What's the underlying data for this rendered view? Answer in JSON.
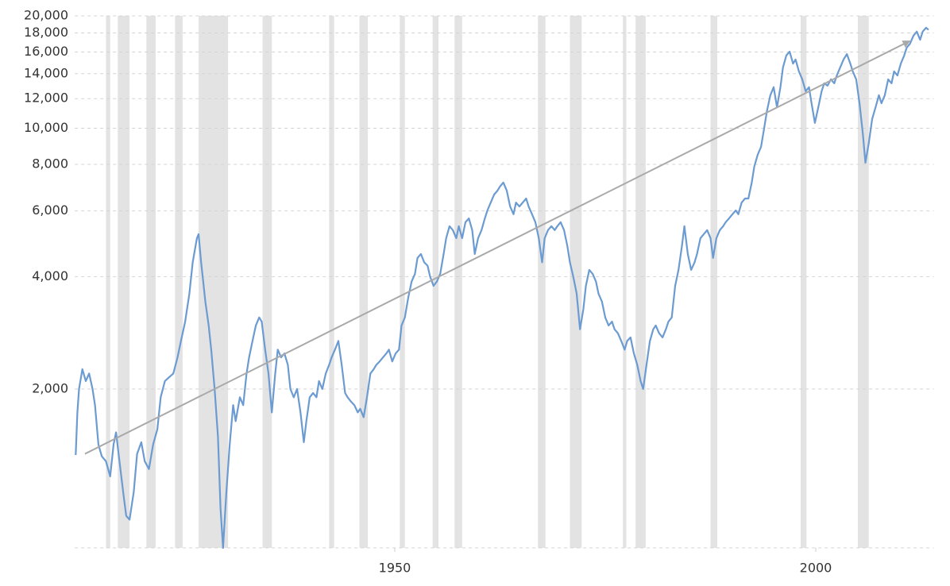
{
  "chart_data": {
    "type": "line",
    "log_y": true,
    "grid": true,
    "xlim": [
      1912,
      2014
    ],
    "xticks": [
      1950,
      2000
    ],
    "ylim": [
      750,
      20000
    ],
    "yticks": [
      {
        "value": 2000,
        "label": "2,000"
      },
      {
        "value": 4000,
        "label": "4,000"
      },
      {
        "value": 6000,
        "label": "6,000"
      },
      {
        "value": 8000,
        "label": "8,000"
      },
      {
        "value": 10000,
        "label": "10,000"
      },
      {
        "value": 12000,
        "label": "12,000"
      },
      {
        "value": 14000,
        "label": "14,000"
      },
      {
        "value": 16000,
        "label": "16,000"
      },
      {
        "value": 18000,
        "label": "18,000"
      },
      {
        "value": 20000,
        "label": "20,000"
      }
    ],
    "recession_color": "#e3e3e3",
    "recessions": [
      [
        1915.7,
        1916.2
      ],
      [
        1917.1,
        1918.5
      ],
      [
        1920.5,
        1921.6
      ],
      [
        1923.9,
        1924.8
      ],
      [
        1926.7,
        1930.2
      ],
      [
        1934.3,
        1935.4
      ],
      [
        1942.2,
        1942.8
      ],
      [
        1945.8,
        1946.8
      ],
      [
        1950.6,
        1951.2
      ],
      [
        1954.5,
        1955.2
      ],
      [
        1957.1,
        1958.0
      ],
      [
        1967.0,
        1967.9
      ],
      [
        1970.8,
        1972.2
      ],
      [
        1977.1,
        1977.5
      ],
      [
        1978.6,
        1979.8
      ],
      [
        1987.5,
        1988.3
      ],
      [
        1998.2,
        1998.9
      ],
      [
        2005.0,
        2006.3
      ]
    ],
    "trend": {
      "color": "#a9a9a9",
      "x": [
        1913.2,
        2011.1
      ],
      "values": [
        1340,
        17100
      ]
    },
    "x": [
      1912.1,
      1912.3,
      1912.5,
      1912.9,
      1913.3,
      1913.7,
      1914.1,
      1914.4,
      1914.8,
      1915.2,
      1915.7,
      1916.2,
      1916.6,
      1916.9,
      1917.3,
      1917.8,
      1918.1,
      1918.5,
      1919.0,
      1919.4,
      1919.9,
      1920.3,
      1920.8,
      1921.3,
      1921.8,
      1922.2,
      1922.7,
      1923.2,
      1923.7,
      1924.2,
      1924.6,
      1925.1,
      1925.6,
      1926.0,
      1926.5,
      1926.7,
      1927.0,
      1927.3,
      1927.5,
      1927.9,
      1928.2,
      1928.6,
      1929.0,
      1929.3,
      1929.6,
      1930.0,
      1930.4,
      1930.8,
      1931.1,
      1931.6,
      1932.0,
      1932.4,
      1932.7,
      1933.1,
      1933.5,
      1933.9,
      1934.2,
      1934.6,
      1935.0,
      1935.4,
      1935.8,
      1936.1,
      1936.5,
      1936.9,
      1937.3,
      1937.6,
      1938.0,
      1938.4,
      1938.8,
      1939.2,
      1939.5,
      1939.9,
      1940.3,
      1940.7,
      1941.0,
      1941.4,
      1941.8,
      1942.2,
      1942.5,
      1942.9,
      1943.3,
      1943.7,
      1944.1,
      1944.4,
      1944.8,
      1945.2,
      1945.6,
      1945.9,
      1946.3,
      1946.7,
      1947.1,
      1947.5,
      1947.8,
      1948.2,
      1948.6,
      1949.0,
      1949.3,
      1949.7,
      1950.1,
      1950.5,
      1950.8,
      1951.2,
      1951.6,
      1952.0,
      1952.4,
      1952.7,
      1953.1,
      1953.5,
      1953.9,
      1954.2,
      1954.6,
      1955.0,
      1955.4,
      1955.8,
      1956.1,
      1956.5,
      1956.9,
      1957.3,
      1957.6,
      1958.0,
      1958.4,
      1958.8,
      1959.2,
      1959.5,
      1959.9,
      1960.3,
      1960.7,
      1961.0,
      1961.4,
      1961.8,
      1962.2,
      1962.5,
      1962.9,
      1963.3,
      1963.7,
      1964.1,
      1964.4,
      1964.8,
      1965.2,
      1965.6,
      1965.9,
      1966.3,
      1966.7,
      1967.1,
      1967.5,
      1967.8,
      1968.2,
      1968.6,
      1969.0,
      1969.3,
      1969.7,
      1970.1,
      1970.5,
      1970.8,
      1971.2,
      1971.6,
      1972.0,
      1972.4,
      1972.7,
      1973.1,
      1973.5,
      1973.9,
      1974.2,
      1974.6,
      1975.0,
      1975.4,
      1975.8,
      1976.1,
      1976.5,
      1976.9,
      1977.3,
      1977.6,
      1978.0,
      1978.4,
      1978.8,
      1979.2,
      1979.5,
      1979.9,
      1980.3,
      1980.7,
      1981.0,
      1981.4,
      1981.8,
      1982.2,
      1982.5,
      1982.9,
      1983.3,
      1983.7,
      1984.1,
      1984.4,
      1984.8,
      1985.2,
      1985.6,
      1985.9,
      1986.3,
      1986.7,
      1987.1,
      1987.5,
      1987.8,
      1988.2,
      1988.6,
      1989.0,
      1989.3,
      1989.7,
      1990.1,
      1990.5,
      1990.8,
      1991.2,
      1991.6,
      1992.0,
      1992.4,
      1992.7,
      1993.1,
      1993.5,
      1993.9,
      1994.2,
      1994.6,
      1995.0,
      1995.4,
      1995.8,
      1996.1,
      1996.5,
      1996.9,
      1997.3,
      1997.6,
      1998.0,
      1998.4,
      1998.8,
      1999.2,
      1999.5,
      1999.9,
      2000.3,
      2000.7,
      2001.0,
      2001.4,
      2001.8,
      2002.2,
      2002.5,
      2002.9,
      2003.3,
      2003.7,
      2004.1,
      2004.4,
      2004.8,
      2005.2,
      2005.6,
      2005.9,
      2006.3,
      2006.7,
      2007.1,
      2007.5,
      2007.8,
      2008.2,
      2008.6,
      2009.0,
      2009.3,
      2009.7,
      2010.1,
      2010.5,
      2010.8,
      2011.2,
      2011.6,
      2012.0,
      2012.4,
      2012.7,
      2013.1,
      2013.4
    ],
    "series": [
      {
        "color": "#6b9bd1",
        "values": [
          1330,
          1727,
          2000,
          2260,
          2100,
          2200,
          2000,
          1810,
          1420,
          1320,
          1280,
          1166,
          1420,
          1530,
          1280,
          1032,
          914,
          893,
          1060,
          1340,
          1440,
          1280,
          1220,
          1420,
          1560,
          1900,
          2100,
          2150,
          2200,
          2430,
          2690,
          3030,
          3600,
          4370,
          5070,
          5200,
          4370,
          3780,
          3430,
          2960,
          2550,
          2000,
          1490,
          960,
          750,
          1060,
          1420,
          1810,
          1640,
          1900,
          1810,
          2200,
          2430,
          2690,
          2960,
          3110,
          3030,
          2550,
          2200,
          1730,
          2200,
          2550,
          2430,
          2490,
          2320,
          2000,
          1900,
          2000,
          1730,
          1440,
          1640,
          1900,
          1950,
          1900,
          2100,
          2000,
          2200,
          2320,
          2430,
          2550,
          2690,
          2320,
          1950,
          1900,
          1850,
          1810,
          1730,
          1770,
          1680,
          1900,
          2200,
          2260,
          2320,
          2370,
          2430,
          2490,
          2550,
          2370,
          2490,
          2550,
          2960,
          3110,
          3520,
          3880,
          4070,
          4490,
          4600,
          4370,
          4280,
          4000,
          3780,
          3880,
          4070,
          4600,
          5070,
          5460,
          5330,
          5070,
          5460,
          5070,
          5600,
          5730,
          5330,
          4600,
          5070,
          5330,
          5730,
          6020,
          6320,
          6640,
          6800,
          6980,
          7150,
          6800,
          6170,
          5880,
          6320,
          6170,
          6320,
          6480,
          6170,
          5880,
          5600,
          5070,
          4370,
          5070,
          5330,
          5460,
          5330,
          5460,
          5600,
          5330,
          4830,
          4370,
          4000,
          3600,
          2890,
          3270,
          3780,
          4170,
          4070,
          3880,
          3600,
          3430,
          3110,
          2960,
          3030,
          2890,
          2820,
          2690,
          2550,
          2690,
          2750,
          2490,
          2320,
          2100,
          2000,
          2320,
          2690,
          2890,
          2960,
          2820,
          2750,
          2890,
          3030,
          3110,
          3780,
          4170,
          4830,
          5460,
          4600,
          4170,
          4370,
          4600,
          5070,
          5200,
          5330,
          5070,
          4490,
          5070,
          5330,
          5460,
          5600,
          5730,
          5880,
          6020,
          5880,
          6320,
          6480,
          6480,
          7150,
          7890,
          8490,
          8910,
          10080,
          11110,
          12260,
          12880,
          11380,
          12880,
          14540,
          15660,
          16040,
          14900,
          15280,
          14200,
          13520,
          12560,
          12880,
          11660,
          10330,
          11380,
          12560,
          13190,
          13000,
          13520,
          13190,
          13840,
          14540,
          15280,
          15800,
          14900,
          14200,
          13520,
          11660,
          9600,
          8080,
          9140,
          10580,
          11380,
          12260,
          11660,
          12260,
          13520,
          13190,
          14200,
          13840,
          14900,
          15660,
          16440,
          16850,
          17700,
          18150,
          17260,
          18150,
          18590,
          18350
        ]
      }
    ]
  }
}
